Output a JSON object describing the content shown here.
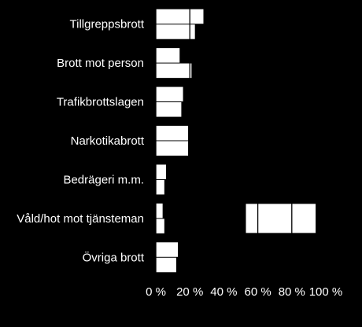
{
  "chart_data": {
    "type": "bar",
    "orientation": "horizontal",
    "categories": [
      "Tillgreppsbrott",
      "Brott mot person",
      "Trafikbrottslagen",
      "Narkotikabrott",
      "Bedrägeri m.m.",
      "Våld/hot mot tjänsteman",
      "Övriga brott"
    ],
    "series": [
      {
        "values": [
          28,
          14,
          16,
          19,
          6,
          4,
          13
        ]
      },
      {
        "values": [
          23,
          21,
          15,
          19,
          5,
          5,
          12
        ]
      }
    ],
    "highlight_block": {
      "category": "Våld/hot mot tjänsteman",
      "from": 53,
      "to": 94
    },
    "xlim": [
      0,
      100
    ],
    "x_ticks": [
      "0 %",
      "20 %",
      "40 %",
      "60 %",
      "80 %",
      "100 %"
    ],
    "grid": "vertical",
    "legend": "none",
    "colors": {
      "background": "#000000",
      "bars": "#ffffff",
      "gridlines": "#000000",
      "text": "#ffffff"
    }
  }
}
